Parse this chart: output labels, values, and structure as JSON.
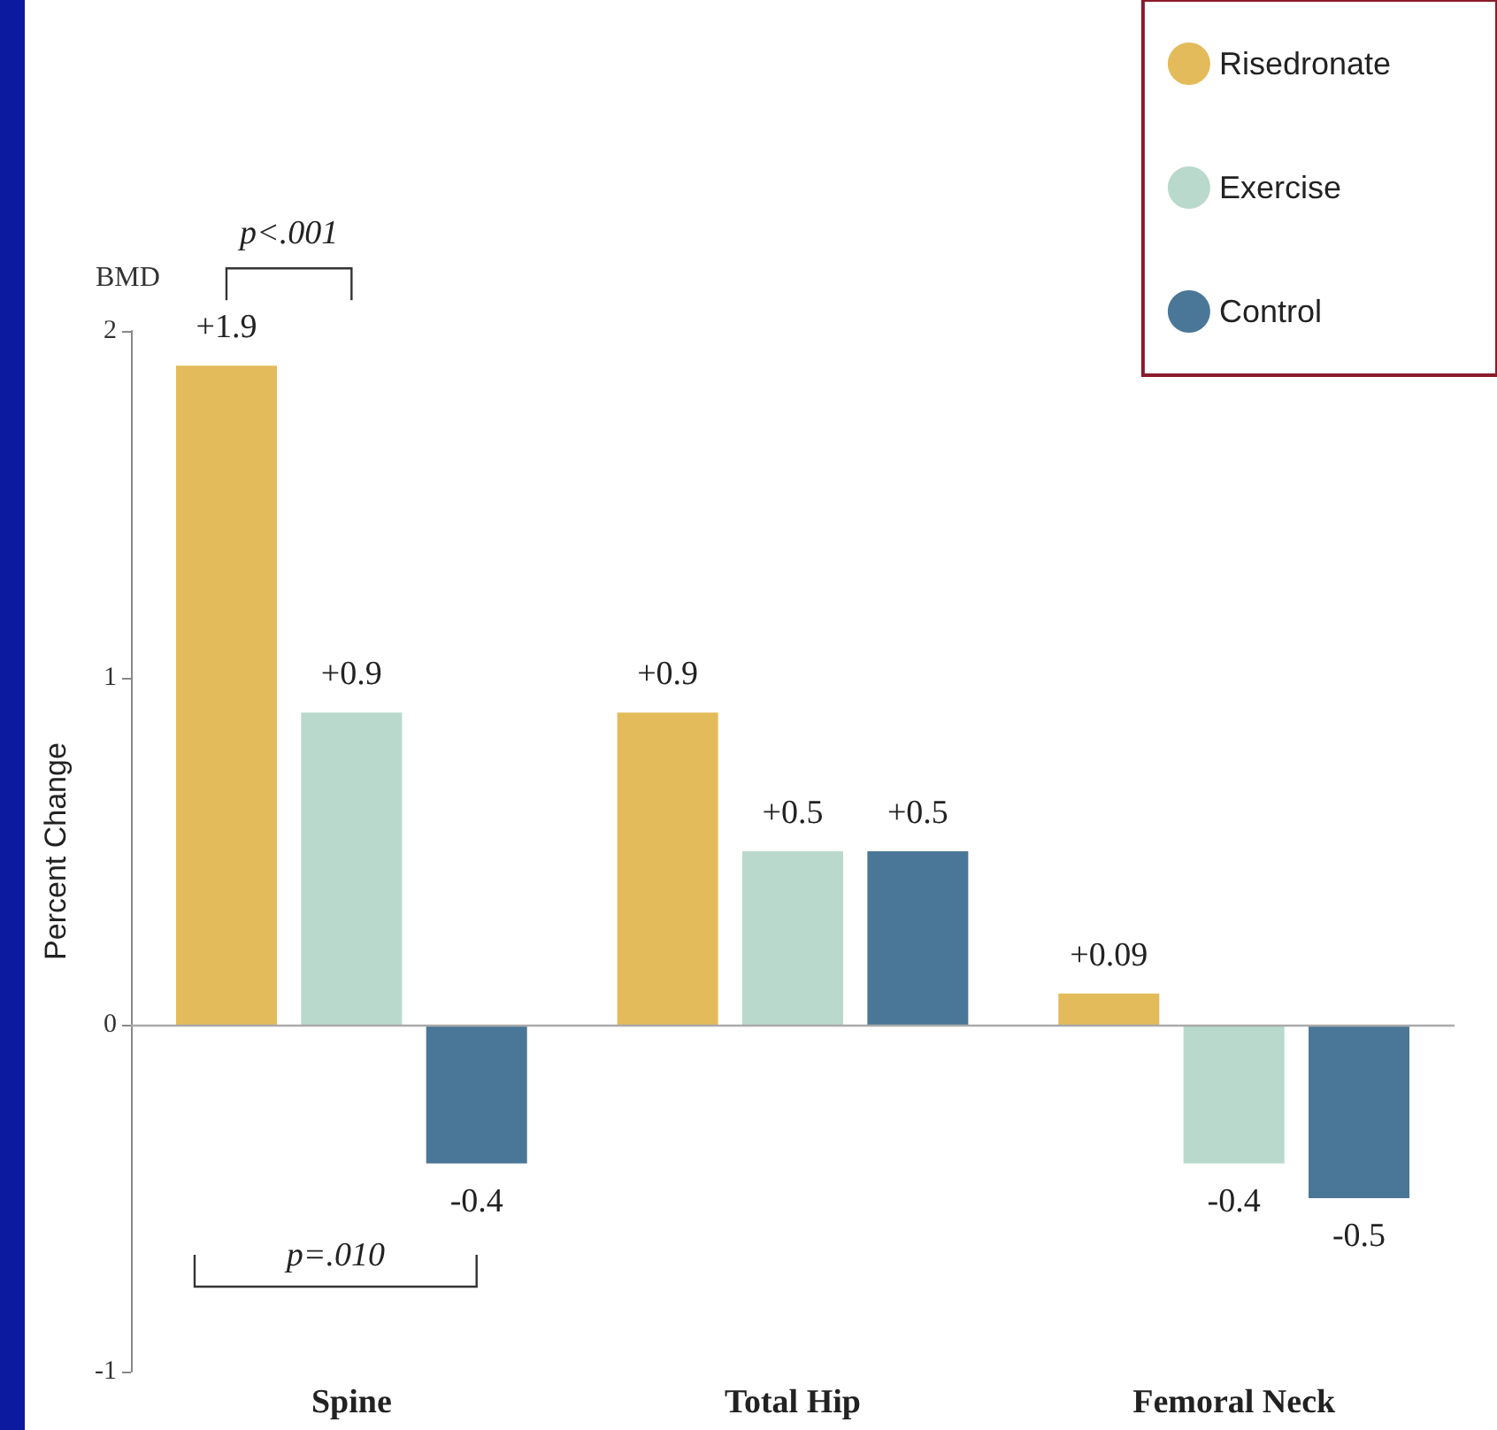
{
  "chart_data": {
    "type": "bar",
    "ylabel": "Percent Change",
    "categories": [
      "Spine",
      "Total Hip",
      "Femoral Neck"
    ],
    "series": [
      {
        "name": "Risedronate",
        "color": "#e3bb5a",
        "values": [
          1.9,
          0.9,
          0.09
        ],
        "value_labels": [
          "+1.9",
          "+0.9",
          "+0.09"
        ]
      },
      {
        "name": "Exercise",
        "color": "#b9d9cc",
        "values": [
          0.9,
          0.5,
          -0.4
        ],
        "value_labels": [
          "+0.9",
          "+0.5",
          "-0.4"
        ]
      },
      {
        "name": "Control",
        "color": "#4a7797",
        "values": [
          -0.4,
          0.5,
          -0.5
        ],
        "value_labels": [
          "-0.4",
          "+0.5",
          "-0.5"
        ]
      }
    ],
    "ref_lines": [
      {
        "axis": "y",
        "value": 0,
        "color": "#aaaaaa"
      }
    ],
    "ylim": [
      -1,
      2
    ],
    "yticks": [
      -1,
      0,
      1,
      2
    ],
    "grid": false,
    "legend": "top right",
    "annotations": [
      "BMD",
      "p<.001",
      "p=.010"
    ]
  }
}
